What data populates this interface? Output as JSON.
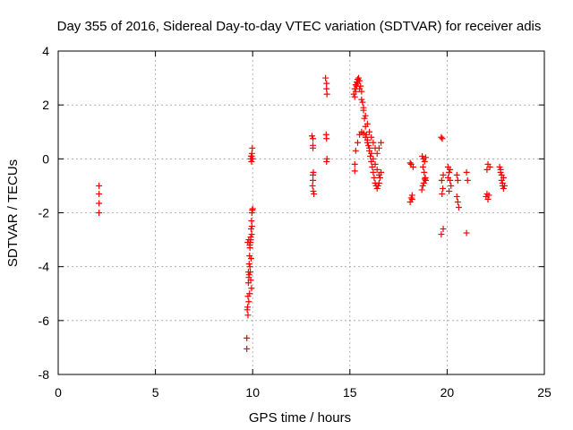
{
  "chart_data": {
    "type": "scatter",
    "title": "Day 355 of 2016, Sidereal Day-to-day VTEC variation (SDTVAR) for receiver adis",
    "xlabel": "GPS time / hours",
    "ylabel": "SDTVAR / TECUs",
    "xlim": [
      0,
      25
    ],
    "ylim": [
      -8,
      4
    ],
    "xticks": [
      0,
      5,
      10,
      15,
      20,
      25
    ],
    "yticks": [
      -8,
      -6,
      -4,
      -2,
      0,
      2,
      4
    ],
    "grid": true,
    "marker": "+",
    "series": [
      {
        "name": "SDTVAR",
        "color": "#ff0000",
        "x": [
          2.1,
          2.1,
          2.1,
          2.1,
          9.7,
          9.7,
          9.72,
          9.74,
          9.76,
          9.78,
          9.8,
          9.82,
          9.84,
          9.86,
          9.88,
          9.9,
          9.92,
          9.94,
          9.96,
          9.98,
          10.0,
          9.75,
          9.8,
          9.85,
          9.9,
          9.95,
          9.78,
          9.82,
          9.86,
          9.9,
          9.94,
          9.76,
          9.8,
          9.84,
          9.88,
          9.92,
          9.96,
          9.9,
          9.92,
          9.94,
          9.96,
          9.98,
          9.95,
          10.0,
          13.05,
          13.1,
          13.1,
          13.1,
          13.12,
          13.1,
          13.08,
          13.12,
          13.15,
          13.1,
          13.75,
          13.8,
          13.8,
          13.82,
          13.78,
          13.8,
          13.8,
          13.82,
          15.2,
          15.25,
          15.3,
          15.35,
          15.4,
          15.45,
          15.5,
          15.55,
          15.6,
          15.65,
          15.7,
          15.75,
          15.8,
          15.85,
          15.9,
          15.95,
          16.0,
          16.05,
          16.1,
          16.15,
          16.2,
          16.25,
          16.3,
          16.35,
          16.4,
          16.45,
          16.5,
          16.55,
          16.6,
          15.25,
          15.3,
          15.35,
          15.4,
          15.5,
          15.6,
          15.7,
          15.8,
          15.9,
          16.0,
          16.1,
          16.2,
          16.3,
          16.4,
          16.5,
          16.6,
          15.3,
          15.4,
          15.5,
          15.6,
          15.7,
          15.8,
          15.9,
          16.0,
          16.1,
          16.2,
          16.3,
          16.4,
          16.5,
          15.25,
          15.25,
          18.1,
          18.15,
          18.2,
          18.2,
          18.15,
          18.25,
          18.1,
          18.7,
          18.75,
          18.8,
          18.85,
          18.9,
          18.72,
          18.78,
          18.84,
          18.9,
          18.76,
          18.82,
          18.88,
          19.7,
          19.75,
          19.8,
          19.72,
          19.78,
          19.74,
          19.8,
          19.7,
          20.05,
          20.1,
          20.15,
          20.2,
          20.1,
          20.15,
          20.05,
          20.5,
          20.55,
          20.6,
          20.5,
          20.55,
          21.0,
          21.05,
          21.0,
          22.0,
          22.05,
          22.1,
          22.15,
          22.2,
          22.05,
          22.1,
          22.7,
          22.75,
          22.8,
          22.85,
          22.9,
          22.95,
          22.75,
          22.8,
          22.85,
          22.9
        ],
        "y": [
          -1.0,
          -1.3,
          -1.65,
          -2.0,
          -6.65,
          -7.05,
          -5.6,
          -5.5,
          -5.1,
          -4.6,
          -4.4,
          -3.9,
          -3.6,
          -3.3,
          -3.1,
          -2.9,
          -2.6,
          -2.3,
          -2.0,
          -1.9,
          -1.85,
          -3.1,
          -3.0,
          -3.2,
          -3.0,
          -2.8,
          -4.2,
          -4.3,
          -4.0,
          -4.5,
          -4.8,
          -5.8,
          -5.3,
          -5.0,
          -4.2,
          -3.7,
          -2.5,
          0.0,
          0.1,
          -0.1,
          0.2,
          0.4,
          0.1,
          0.0,
          0.85,
          0.75,
          0.5,
          0.4,
          -0.5,
          -0.8,
          -1.0,
          -1.2,
          -1.3,
          -0.6,
          3.0,
          2.8,
          2.6,
          2.4,
          0.9,
          0.75,
          -0.1,
          0.0,
          2.4,
          2.6,
          2.75,
          2.85,
          2.95,
          3.0,
          2.9,
          2.7,
          2.5,
          2.1,
          1.8,
          1.5,
          1.2,
          0.9,
          0.7,
          0.5,
          0.3,
          0.1,
          -0.1,
          -0.3,
          -0.5,
          -0.7,
          -0.9,
          -1.0,
          -1.1,
          -1.0,
          -0.9,
          -0.7,
          -0.5,
          2.3,
          2.5,
          2.7,
          2.8,
          2.6,
          2.2,
          1.9,
          1.6,
          1.3,
          1.0,
          0.8,
          0.6,
          0.4,
          0.2,
          0.4,
          0.6,
          0.3,
          0.6,
          0.9,
          1.0,
          0.95,
          0.8,
          0.6,
          0.4,
          0.2,
          0.0,
          -0.2,
          -0.4,
          -0.6,
          -0.2,
          -0.45,
          -1.6,
          -1.45,
          -1.35,
          -1.5,
          -0.2,
          -0.3,
          -0.15,
          -1.15,
          -1.0,
          -0.9,
          -0.75,
          -0.8,
          0.1,
          0.0,
          -0.1,
          0.05,
          -0.3,
          -0.5,
          -0.7,
          0.8,
          0.75,
          -0.6,
          -0.8,
          -1.1,
          -1.3,
          -2.6,
          -2.8,
          -0.3,
          -0.5,
          -0.8,
          -1.0,
          -1.2,
          -0.4,
          -0.7,
          -1.4,
          -1.6,
          -1.8,
          -0.6,
          -0.8,
          -0.5,
          -0.8,
          -2.75,
          -1.4,
          -1.3,
          -1.5,
          -1.35,
          -0.3,
          -0.4,
          -0.2,
          -0.3,
          -0.5,
          -0.8,
          -1.0,
          -1.1,
          -1.0,
          -0.4,
          -0.6,
          -0.9,
          -0.7
        ]
      }
    ]
  }
}
